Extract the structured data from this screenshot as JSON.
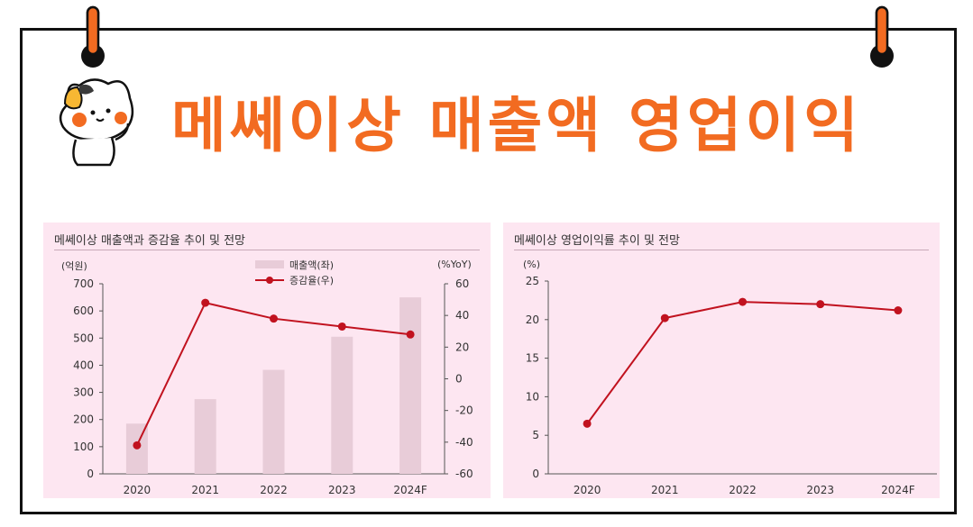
{
  "header": {
    "title": "메쎄이상 매출액 영업이익"
  },
  "colors": {
    "accent": "#f26b21",
    "bar": "#e8ccd8",
    "line": "#c1121f",
    "panel": "#fde6f1"
  },
  "icons": {
    "pin": "pushpin-icon",
    "mascot": "cat-mascot-icon"
  },
  "chart_data": [
    {
      "type": "bar",
      "title": "메쎄이상 매출액과 증감율 추이 및 전망",
      "categories": [
        "2020",
        "2021",
        "2022",
        "2023",
        "2024F"
      ],
      "left_unit": "(억원)",
      "right_unit": "(%YoY)",
      "ylim": [
        0,
        700
      ],
      "yticks": [
        "0",
        "100",
        "200",
        "300",
        "400",
        "500",
        "600",
        "700"
      ],
      "y2lim": [
        -60,
        60
      ],
      "y2ticks": [
        "-60",
        "-40",
        "-20",
        "0",
        "20",
        "40",
        "60"
      ],
      "legend_position": "top-center",
      "series": [
        {
          "name": "매출액(좌)",
          "type": "bar",
          "axis": "left",
          "values": [
            185,
            275,
            383,
            505,
            650
          ]
        },
        {
          "name": "증감율(우)",
          "type": "line",
          "axis": "right",
          "values": [
            -42,
            48,
            38,
            33,
            28
          ]
        }
      ]
    },
    {
      "type": "line",
      "title": "메쎄이상 영업이익률 추이 및 전망",
      "categories": [
        "2020",
        "2021",
        "2022",
        "2023",
        "2024F"
      ],
      "left_unit": "(%)",
      "ylim": [
        0,
        25
      ],
      "yticks": [
        "0",
        "5",
        "10",
        "15",
        "20",
        "25"
      ],
      "series": [
        {
          "values": [
            6.5,
            20.2,
            22.3,
            22.0,
            21.2
          ]
        }
      ]
    }
  ]
}
